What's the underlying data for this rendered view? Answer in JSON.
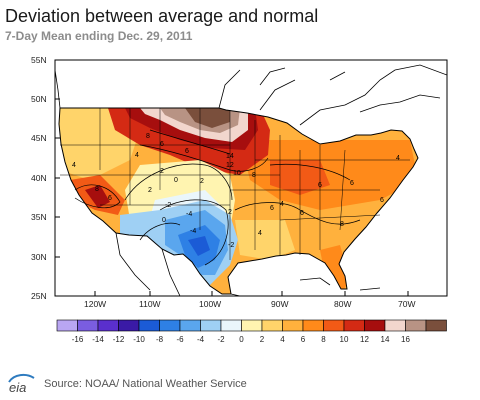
{
  "header": {
    "title": "Deviation between average and normal",
    "subtitle": "7-Day Mean ending Dec. 29, 2011"
  },
  "map": {
    "lat_labels": [
      "55N",
      "50N",
      "45N",
      "40N",
      "35N",
      "30N",
      "25N"
    ],
    "lon_labels": [
      "120W",
      "110W",
      "100W",
      "90W",
      "80W",
      "70W"
    ],
    "contour_labels": [
      "8",
      "6",
      "6",
      "14",
      "12",
      "10",
      "8",
      "4",
      "4",
      "2",
      "0",
      "2",
      "2",
      "6",
      "8",
      "6",
      "6",
      "4",
      "-2",
      "-4",
      "-2",
      "0",
      "-4",
      "2",
      "6",
      "8",
      "4",
      "6",
      "6",
      "4"
    ],
    "colors": {
      "water": "#ffffff",
      "land_border": "#000000",
      "grid": "#000000"
    }
  },
  "legend": {
    "values": [
      "-16",
      "-14",
      "-12",
      "-10",
      "-8",
      "-6",
      "-4",
      "-2",
      "0",
      "2",
      "4",
      "6",
      "8",
      "10",
      "12",
      "14",
      "16"
    ],
    "colors": [
      "#b9a6f2",
      "#7a5de0",
      "#5a2fcd",
      "#3a1aa6",
      "#1b5bd6",
      "#2e80e5",
      "#5aa6ee",
      "#9fd0f4",
      "#eaf6fb",
      "#fff4b0",
      "#ffd46a",
      "#ffb13d",
      "#ff8a1a",
      "#f25a16",
      "#d42a14",
      "#a60e0e",
      "#f2d6cd",
      "#b89384",
      "#7a4f3c"
    ]
  },
  "footer": {
    "logo_text": "eia",
    "source": "Source: NOAA/ National Weather Service"
  }
}
